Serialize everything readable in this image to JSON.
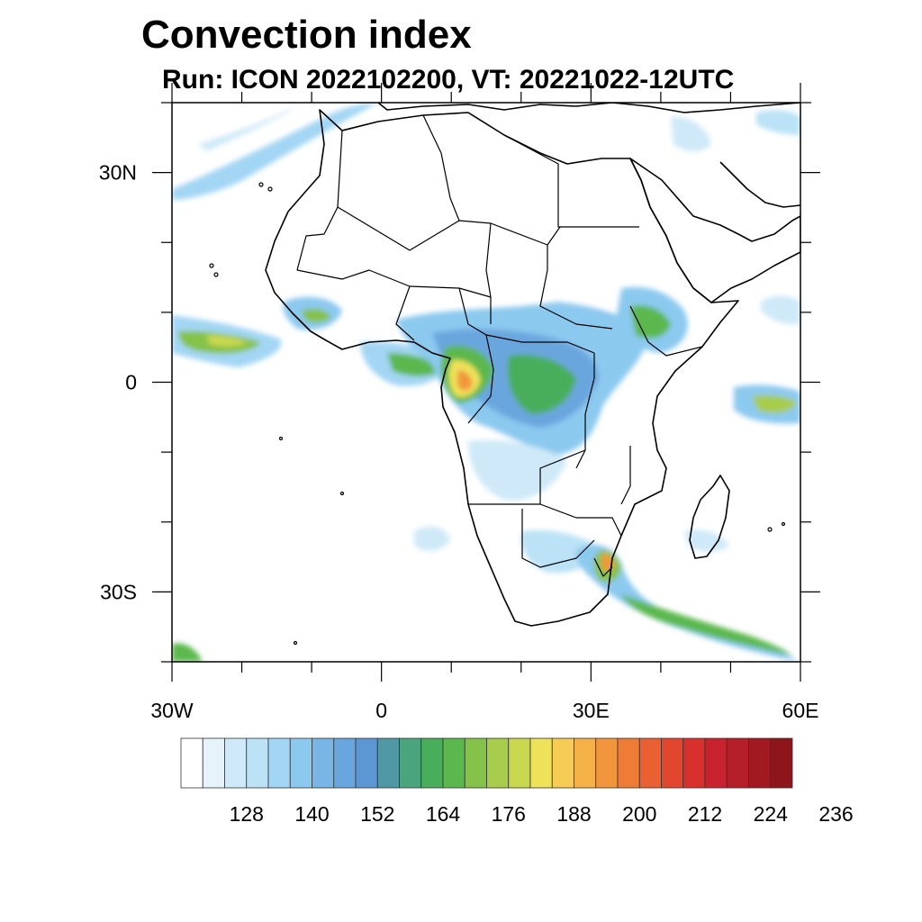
{
  "title": "Convection index",
  "subtitle": "Run: ICON 2022102200,  VT: 20221022-12UTC",
  "map": {
    "region": "Africa",
    "projection": "lat-lon",
    "lon_range": [
      -30,
      60
    ],
    "lat_range": [
      -40,
      40
    ],
    "lon_ticks": [
      {
        "lon": -30,
        "label": "30W"
      },
      {
        "lon": 0,
        "label": "0"
      },
      {
        "lon": 30,
        "label": "30E"
      },
      {
        "lon": 60,
        "label": "60E"
      }
    ],
    "lat_ticks": [
      {
        "lat": 30,
        "label": "30N"
      },
      {
        "lat": 0,
        "label": "0"
      },
      {
        "lat": -30,
        "label": "30S"
      }
    ]
  },
  "colorbar": {
    "colors": [
      "#ffffff",
      "#e6f3fb",
      "#cfe9f8",
      "#bbe2f6",
      "#a3d6f4",
      "#8cc9ef",
      "#79b6e5",
      "#6aa6de",
      "#5c97d3",
      "#4f98a4",
      "#4aa57e",
      "#49ae5c",
      "#5bb84e",
      "#85c24a",
      "#a8cc4c",
      "#c9d74f",
      "#eee25a",
      "#f7cc55",
      "#f4b148",
      "#f2963d",
      "#ee7c37",
      "#e96132",
      "#e2462e",
      "#d7302d",
      "#c8222e",
      "#b51f2a",
      "#a11a22",
      "#8e151a"
    ],
    "labels": [
      "128",
      "140",
      "152",
      "164",
      "176",
      "188",
      "200",
      "212",
      "224",
      "236"
    ]
  },
  "colors": {
    "land_outline": "#000000",
    "frame": "#000000"
  }
}
